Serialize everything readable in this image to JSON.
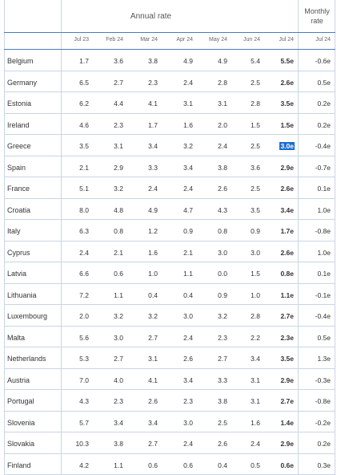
{
  "header": {
    "annual_rate": "Annual rate",
    "monthly_rate": "Monthly rate"
  },
  "columns": [
    "Jul 23",
    "Feb 24",
    "Mar 24",
    "Apr 24",
    "May 24",
    "Jun 24",
    "Jul 24",
    "Jul 24"
  ],
  "rows": [
    {
      "country": "Belgium",
      "values": [
        "1.7",
        "3.6",
        "3.8",
        "4.9",
        "4.9",
        "5.4",
        "5.5e",
        "-0.6e"
      ]
    },
    {
      "country": "Germany",
      "values": [
        "6.5",
        "2.7",
        "2.3",
        "2.4",
        "2.8",
        "2.5",
        "2.6e",
        "0.5e"
      ]
    },
    {
      "country": "Estonia",
      "values": [
        "6.2",
        "4.4",
        "4.1",
        "3.1",
        "3.1",
        "2.8",
        "3.5e",
        "0.2e"
      ]
    },
    {
      "country": "Ireland",
      "values": [
        "4.6",
        "2.3",
        "1.7",
        "1.6",
        "2.0",
        "1.5",
        "1.5e",
        "0.2e"
      ]
    },
    {
      "country": "Greece",
      "values": [
        "3.5",
        "3.1",
        "3.4",
        "3.2",
        "2.4",
        "2.5",
        "3.0e",
        "-0.4e"
      ]
    },
    {
      "country": "Spain",
      "values": [
        "2.1",
        "2.9",
        "3.3",
        "3.4",
        "3.8",
        "3.6",
        "2.9e",
        "-0.7e"
      ]
    },
    {
      "country": "France",
      "values": [
        "5.1",
        "3.2",
        "2.4",
        "2.4",
        "2.6",
        "2.5",
        "2.6e",
        "0.1e"
      ]
    },
    {
      "country": "Croatia",
      "values": [
        "8.0",
        "4.8",
        "4.9",
        "4.7",
        "4.3",
        "3.5",
        "3.4e",
        "1.0e"
      ]
    },
    {
      "country": "Italy",
      "values": [
        "6.3",
        "0.8",
        "1.2",
        "0.9",
        "0.8",
        "0.9",
        "1.7e",
        "-0.8e"
      ]
    },
    {
      "country": "Cyprus",
      "values": [
        "2.4",
        "2.1",
        "1.6",
        "2.1",
        "3.0",
        "3.0",
        "2.6e",
        "1.0e"
      ]
    },
    {
      "country": "Latvia",
      "values": [
        "6.6",
        "0.6",
        "1.0",
        "1.1",
        "0.0",
        "1.5",
        "0.8e",
        "0.1e"
      ]
    },
    {
      "country": "Lithuania",
      "values": [
        "7.2",
        "1.1",
        "0.4",
        "0.4",
        "0.9",
        "1.0",
        "1.1e",
        "-0.1e"
      ]
    },
    {
      "country": "Luxembourg",
      "values": [
        "2.0",
        "3.2",
        "3.2",
        "3.0",
        "3.2",
        "2.8",
        "2.7e",
        "-0.4e"
      ]
    },
    {
      "country": "Malta",
      "values": [
        "5.6",
        "3.0",
        "2.7",
        "2.4",
        "2.3",
        "2.2",
        "2.3e",
        "0.5e"
      ]
    },
    {
      "country": "Netherlands",
      "values": [
        "5.3",
        "2.7",
        "3.1",
        "2.6",
        "2.7",
        "3.4",
        "3.5e",
        "1.3e"
      ]
    },
    {
      "country": "Austria",
      "values": [
        "7.0",
        "4.0",
        "4.1",
        "3.4",
        "3.3",
        "3.1",
        "2.9e",
        "-0.3e"
      ]
    },
    {
      "country": "Portugal",
      "values": [
        "4.3",
        "2.3",
        "2.6",
        "2.3",
        "3.8",
        "3.1",
        "2.7e",
        "-0.8e"
      ]
    },
    {
      "country": "Slovenia",
      "values": [
        "5.7",
        "3.4",
        "3.4",
        "3.0",
        "2.5",
        "1.6",
        "1.4e",
        "-0.2e"
      ]
    },
    {
      "country": "Slovakia",
      "values": [
        "10.3",
        "3.8",
        "2.7",
        "2.4",
        "2.6",
        "2.4",
        "2.9e",
        "0.2e"
      ]
    },
    {
      "country": "Finland",
      "values": [
        "4.2",
        "1.1",
        "0.6",
        "0.6",
        "0.4",
        "0.5",
        "0.6e",
        "0.3e"
      ]
    }
  ],
  "highlighted_cell": {
    "row": 4,
    "col": 6
  },
  "colors": {
    "grid": "#c9d6e6",
    "header_rule": "#4a7cc1",
    "selection": "#1c6ccd"
  }
}
